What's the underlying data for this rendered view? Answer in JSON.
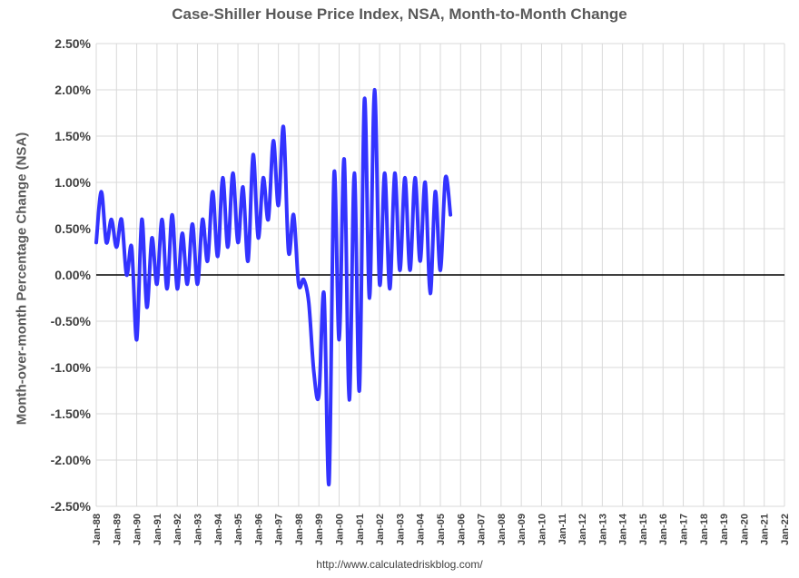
{
  "chart_data": {
    "type": "line",
    "title": "Case-Shiller House Price Index, NSA, Month-to-Month Change",
    "xlabel": "",
    "ylabel": "Month-over-month Percentage Change (NSA)",
    "ylim": [
      -2.5,
      2.5
    ],
    "y_ticks": [
      "2.50%",
      "2.00%",
      "1.50%",
      "1.00%",
      "0.50%",
      "0.00%",
      "-0.50%",
      "-1.00%",
      "-1.50%",
      "-2.00%",
      "-2.50%"
    ],
    "x_ticks": [
      "Jan-88",
      "Jan-89",
      "Jan-90",
      "Jan-91",
      "Jan-92",
      "Jan-93",
      "Jan-94",
      "Jan-95",
      "Jan-96",
      "Jan-97",
      "Jan-98",
      "Jan-99",
      "Jan-00",
      "Jan-01",
      "Jan-02",
      "Jan-03",
      "Jan-04",
      "Jan-05",
      "Jan-06",
      "Jan-07",
      "Jan-08",
      "Jan-09",
      "Jan-10",
      "Jan-11",
      "Jan-12",
      "Jan-13",
      "Jan-14",
      "Jan-15",
      "Jan-16",
      "Jan-17",
      "Jan-18",
      "Jan-19",
      "Jan-20",
      "Jan-21",
      "Jan-22"
    ],
    "x_start": "Jan-88",
    "grid": true,
    "series": [
      {
        "name": "Month-to-Month Change (NSA)",
        "color": "#3333ff",
        "start_index": 0,
        "annual_points": [
          [
            0.35,
            0.9,
            0.35,
            0.6,
            0.3
          ],
          [
            0.35,
            0.6,
            0.0,
            0.3,
            -0.7
          ],
          [
            -0.7,
            0.6,
            -0.35,
            0.4,
            -0.1
          ],
          [
            -0.1,
            0.6,
            -0.15,
            0.65,
            -0.15
          ],
          [
            -0.15,
            0.45,
            -0.1,
            0.55,
            -0.1
          ],
          [
            -0.1,
            0.6,
            0.15,
            0.9,
            0.2
          ],
          [
            0.2,
            1.05,
            0.3,
            1.1,
            0.35
          ],
          [
            0.35,
            0.95,
            0.15,
            1.3,
            0.4
          ],
          [
            0.4,
            1.05,
            0.6,
            1.45,
            0.75
          ],
          [
            0.75,
            1.6,
            0.25,
            0.65,
            -0.1
          ],
          [
            -0.1,
            -0.05,
            -0.3,
            -1.05,
            -1.3
          ],
          [
            -1.3,
            -0.2,
            -2.25,
            1.1,
            -0.7
          ],
          [
            -0.7,
            1.25,
            -1.35,
            1.1,
            -1.25
          ],
          [
            -1.25,
            1.9,
            -0.25,
            2.0,
            -0.1
          ],
          [
            -0.1,
            1.1,
            -0.15,
            1.1,
            0.05
          ],
          [
            0.05,
            1.05,
            0.05,
            1.05,
            0.15
          ],
          [
            0.15,
            1.0,
            -0.2,
            0.9,
            0.05
          ],
          [
            0.05,
            1.05,
            0.65
          ]
        ]
      }
    ]
  },
  "source": "http://www.calculatedriskblog.com/"
}
